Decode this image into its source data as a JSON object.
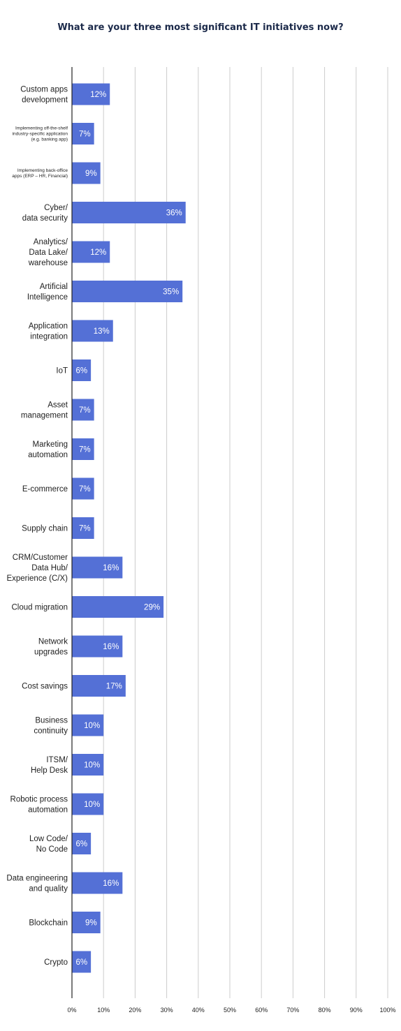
{
  "chart_data": {
    "type": "bar",
    "orientation": "horizontal",
    "title": "What are your three most significant IT initiatives now?",
    "categories": [
      [
        "Custom apps",
        "development"
      ],
      [
        "Implementing off-the-shelf",
        "industry-specific application",
        "(e.g. banking app)"
      ],
      [
        "Implementing back-office",
        "apps (ERP – HR, Financial)"
      ],
      [
        "Cyber/",
        "data security"
      ],
      [
        "Analytics/",
        "Data Lake/",
        "warehouse"
      ],
      [
        "Artificial",
        "Intelligence"
      ],
      [
        "Application",
        "integration"
      ],
      [
        "IoT"
      ],
      [
        "Asset",
        "management"
      ],
      [
        "Marketing",
        "automation"
      ],
      [
        "E-commerce"
      ],
      [
        "Supply chain"
      ],
      [
        "CRM/Customer",
        "Data Hub/",
        "Experience (C/X)"
      ],
      [
        "Cloud migration"
      ],
      [
        "Network",
        "upgrades"
      ],
      [
        "Cost savings"
      ],
      [
        "Business",
        "continuity"
      ],
      [
        "ITSM/",
        "Help Desk"
      ],
      [
        "Robotic process",
        "automation"
      ],
      [
        "Low Code/",
        "No Code"
      ],
      [
        "Data engineering",
        "and quality"
      ],
      [
        "Blockchain"
      ],
      [
        "Crypto"
      ]
    ],
    "values": [
      12,
      7,
      9,
      36,
      12,
      35,
      13,
      6,
      7,
      7,
      7,
      7,
      16,
      29,
      16,
      17,
      10,
      10,
      10,
      6,
      16,
      9,
      6
    ],
    "value_labels": [
      "12%",
      "7%",
      "9%",
      "36%",
      "12%",
      "35%",
      "13%",
      "6%",
      "7%",
      "7%",
      "7%",
      "7%",
      "16%",
      "29%",
      "16%",
      "17%",
      "10%",
      "10%",
      "10%",
      "6%",
      "16%",
      "9%",
      "6%"
    ],
    "xlim": [
      0,
      100
    ],
    "xticks": [
      "0%",
      "10%",
      "20%",
      "30%",
      "40%",
      "50%",
      "60%",
      "70%",
      "80%",
      "90%",
      "100%"
    ],
    "grid": true,
    "legend": "none",
    "bar_color": "#5470d6"
  }
}
